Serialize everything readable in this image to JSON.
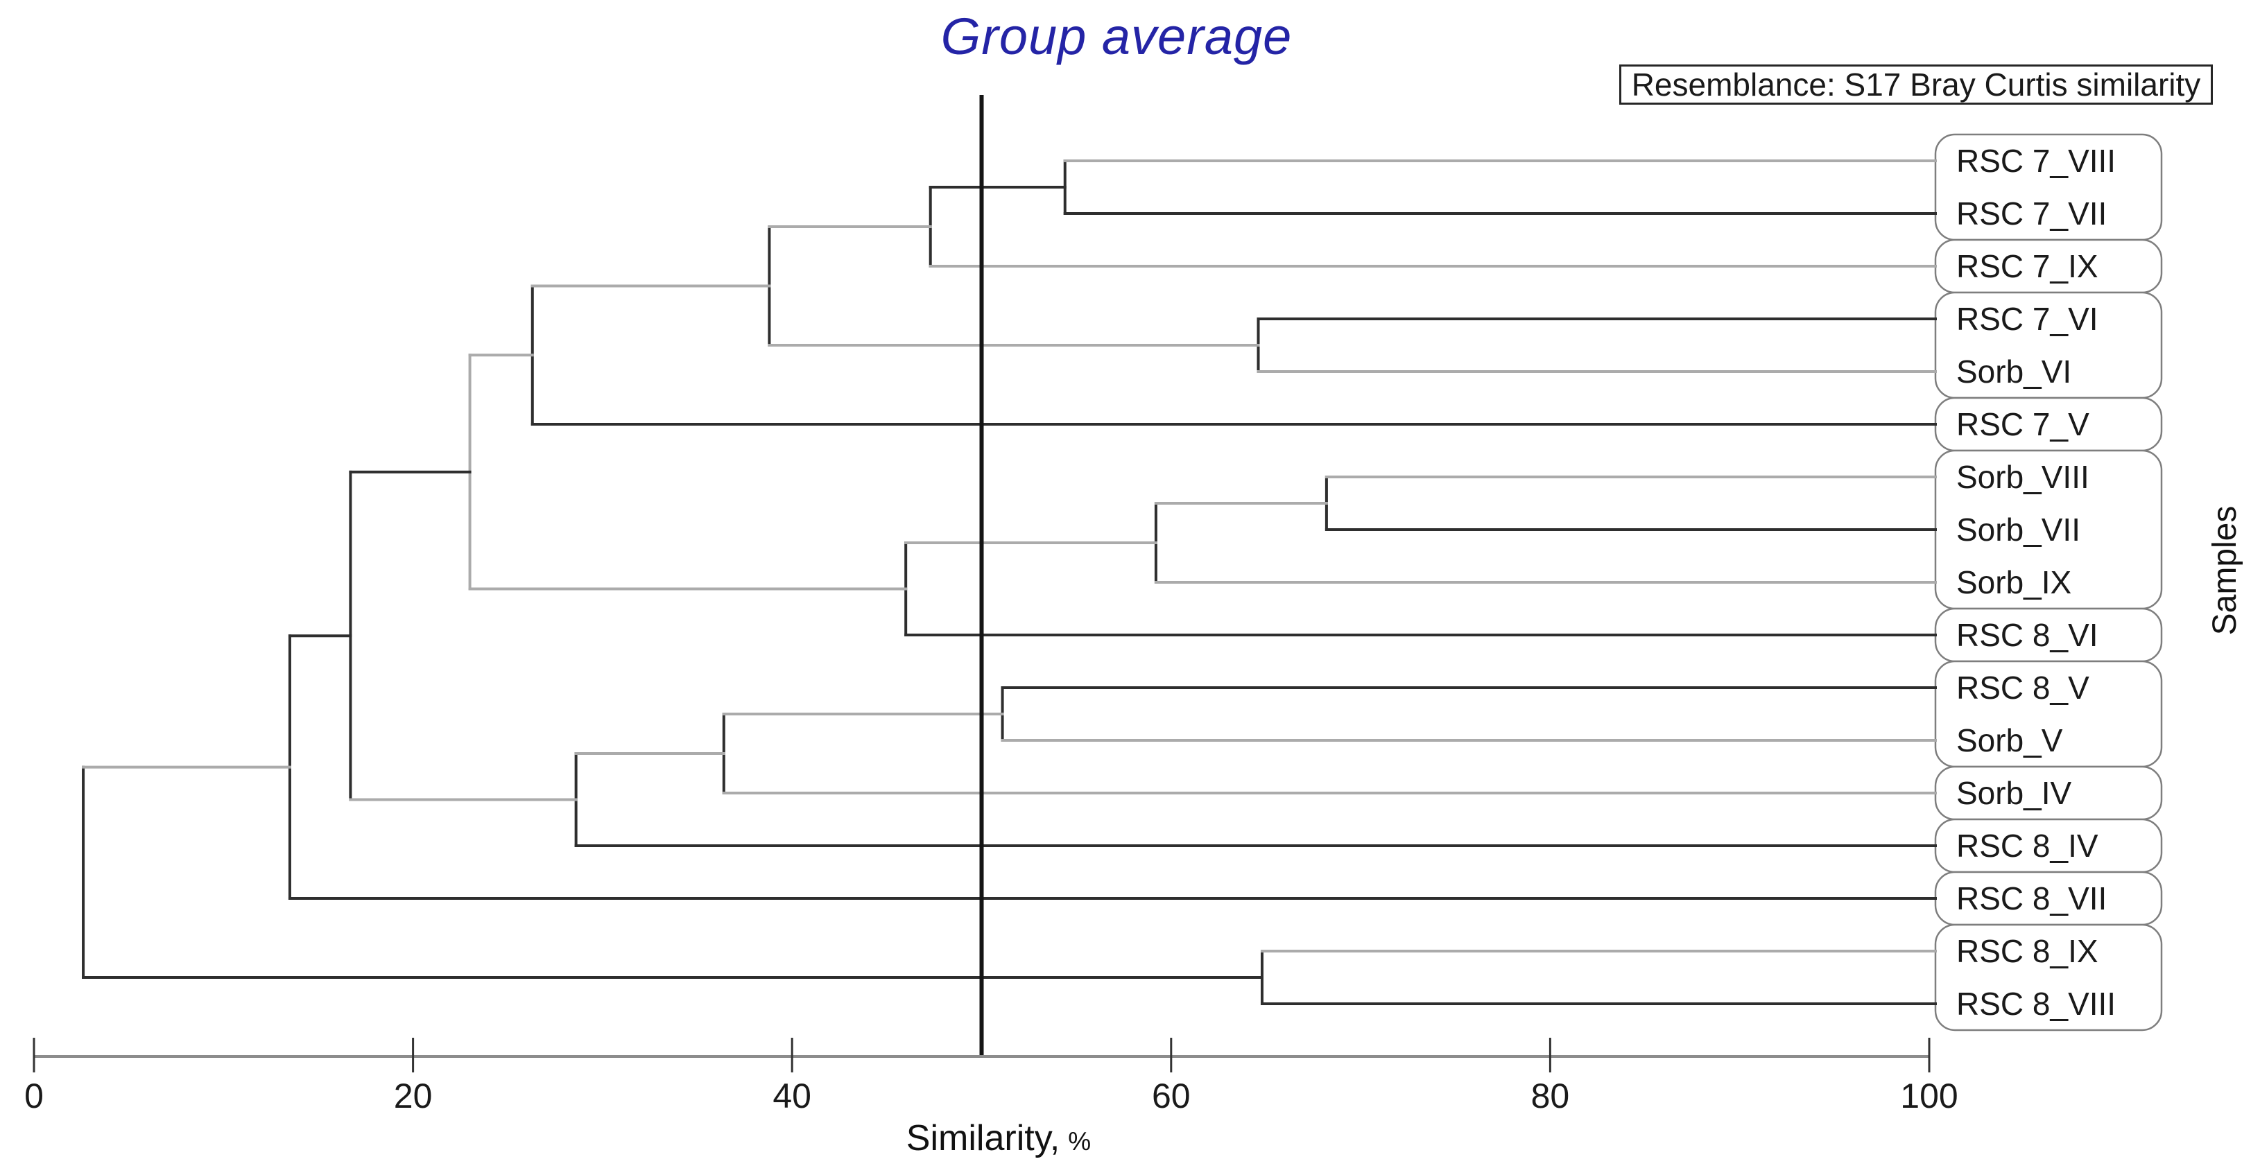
{
  "title": {
    "text": "Group average"
  },
  "caption": {
    "text": "Resemblance: S17 Bray Curtis similarity"
  },
  "y_axis_label": "Samples",
  "x_axis": {
    "label_main": "Similarity,",
    "label_unit": "%",
    "min": 0,
    "max": 100,
    "ticks": [
      0,
      20,
      40,
      60,
      80,
      100
    ]
  },
  "cutoff_line": {
    "similarity": 50
  },
  "colors": {
    "line_dark": "#2e2e2e",
    "line_light": "#ababab",
    "axis": "#8c8c8c",
    "tick": "#333333",
    "cutoff": "#141414",
    "box_border": "#7e7e7e",
    "text": "#1a1a1a",
    "title_blue": "#2424a6"
  },
  "chart_data": {
    "type": "dendrogram",
    "orientation": "leaves-right",
    "xlabel": "Similarity, %",
    "xlim": [
      0,
      100
    ],
    "leaves": [
      {
        "label": "RSC 7_VIII",
        "shade": "light"
      },
      {
        "label": "RSC 7_VII",
        "shade": "dark"
      },
      {
        "label": "RSC 7_IX",
        "shade": "light"
      },
      {
        "label": "RSC 7_VI",
        "shade": "dark"
      },
      {
        "label": "Sorb_VI",
        "shade": "light"
      },
      {
        "label": "RSC 7_V",
        "shade": "dark"
      },
      {
        "label": "Sorb_VIII",
        "shade": "light"
      },
      {
        "label": "Sorb_VII",
        "shade": "dark"
      },
      {
        "label": "Sorb_IX",
        "shade": "light"
      },
      {
        "label": "RSC 8_VI",
        "shade": "dark"
      },
      {
        "label": "RSC 8_V",
        "shade": "dark"
      },
      {
        "label": "Sorb_V",
        "shade": "light"
      },
      {
        "label": "Sorb_IV",
        "shade": "light"
      },
      {
        "label": "RSC 8_IV",
        "shade": "dark"
      },
      {
        "label": "RSC 8_VII",
        "shade": "dark"
      },
      {
        "label": "RSC 8_IX",
        "shade": "light"
      },
      {
        "label": "RSC 8_VIII",
        "shade": "dark"
      }
    ],
    "merges": [
      {
        "id": "M1",
        "children": [
          "leaf:0",
          "leaf:1"
        ],
        "similarity": 54.4,
        "line_shade": "dark",
        "out_shade": "dark"
      },
      {
        "id": "M2",
        "children": [
          "M1",
          "leaf:2"
        ],
        "similarity": 47.3,
        "line_shade": "dark",
        "out_shade": "light"
      },
      {
        "id": "M3",
        "children": [
          "leaf:3",
          "leaf:4"
        ],
        "similarity": 64.6,
        "line_shade": "dark",
        "out_shade": "light"
      },
      {
        "id": "M4",
        "children": [
          "M2",
          "M3"
        ],
        "similarity": 38.8,
        "line_shade": "dark",
        "out_shade": "light"
      },
      {
        "id": "M5",
        "children": [
          "M4",
          "leaf:5"
        ],
        "similarity": 26.3,
        "line_shade": "dark",
        "out_shade": "light"
      },
      {
        "id": "M6",
        "children": [
          "leaf:6",
          "leaf:7"
        ],
        "similarity": 68.2,
        "line_shade": "dark",
        "out_shade": "light"
      },
      {
        "id": "M7",
        "children": [
          "M6",
          "leaf:8"
        ],
        "similarity": 59.2,
        "line_shade": "dark",
        "out_shade": "light"
      },
      {
        "id": "M8",
        "children": [
          "M7",
          "leaf:9"
        ],
        "similarity": 46.0,
        "line_shade": "dark",
        "out_shade": "light"
      },
      {
        "id": "M9",
        "children": [
          "M5",
          "M8"
        ],
        "similarity": 23.0,
        "line_shade": "light",
        "out_shade": "dark"
      },
      {
        "id": "M10",
        "children": [
          "leaf:10",
          "leaf:11"
        ],
        "similarity": 51.1,
        "line_shade": "dark",
        "out_shade": "light"
      },
      {
        "id": "M11",
        "children": [
          "M10",
          "leaf:12"
        ],
        "similarity": 36.4,
        "line_shade": "dark",
        "out_shade": "light"
      },
      {
        "id": "M12",
        "children": [
          "M11",
          "leaf:13"
        ],
        "similarity": 28.6,
        "line_shade": "dark",
        "out_shade": "light"
      },
      {
        "id": "M13",
        "children": [
          "M9",
          "M12"
        ],
        "similarity": 16.7,
        "line_shade": "dark",
        "out_shade": "dark"
      },
      {
        "id": "M14",
        "children": [
          "M13",
          "leaf:14"
        ],
        "similarity": 13.5,
        "line_shade": "dark",
        "out_shade": "light"
      },
      {
        "id": "M15",
        "children": [
          "leaf:15",
          "leaf:16"
        ],
        "similarity": 64.8,
        "line_shade": "dark",
        "out_shade": "dark"
      },
      {
        "id": "M16",
        "children": [
          "M14",
          "M15"
        ],
        "similarity": 2.6,
        "line_shade": "dark"
      }
    ],
    "groups_at_cutoff": [
      [
        0,
        1
      ],
      [
        2
      ],
      [
        3,
        4
      ],
      [
        5
      ],
      [
        6,
        7,
        8
      ],
      [
        9
      ],
      [
        10,
        11
      ],
      [
        12
      ],
      [
        13
      ],
      [
        14
      ],
      [
        15,
        16
      ]
    ]
  }
}
